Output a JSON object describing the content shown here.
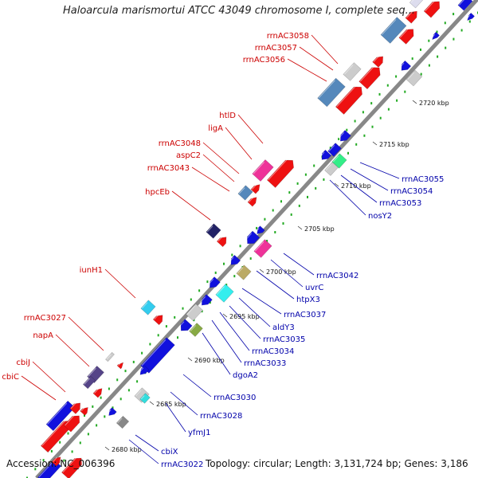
{
  "title": "Haloarcula marismortui ATCC 43049 chromosome I, complete seq...",
  "footer": {
    "accession": "Accession: NC_006396",
    "summary": "Topology: circular; Length: 3,131,724 bp; Genes: 3,186"
  },
  "colors": {
    "forward_label": "#cc0000",
    "reverse_label": "#0000aa",
    "forward_gene": "#ee1111",
    "reverse_gene": "#1111dd",
    "rrna": "#5588bb",
    "other": "#cccccc",
    "track_dots": "#22aa22",
    "backbone": "#888888"
  },
  "scale": {
    "ticks": [
      "2680 kbp",
      "2685 kbp",
      "2690 kbp",
      "2695 kbp",
      "2700 kbp",
      "2705 kbp",
      "2710 kbp",
      "2715 kbp",
      "2720 kbp"
    ]
  },
  "labels": {
    "forward": [
      "rrnAC3058",
      "rrnAC3057",
      "rrnAC3056",
      "htlD",
      "ligA",
      "rrnAC3048",
      "aspC2",
      "rrnAC3043",
      "hpcEb",
      "iunH1",
      "rrnAC3027",
      "napA",
      "cbiJ",
      "cbiC"
    ],
    "reverse": [
      "rrnAC3055",
      "rrnAC3054",
      "rrnAC3053",
      "nosY2",
      "rrnAC3042",
      "uvrC",
      "htpX3",
      "rrnAC3037",
      "aldY3",
      "rrnAC3035",
      "rrnAC3034",
      "rrnAC3033",
      "dgoA2",
      "rrnAC3030",
      "rrnAC3028",
      "yfmJ1",
      "cbiX",
      "rrnAC3022"
    ]
  }
}
